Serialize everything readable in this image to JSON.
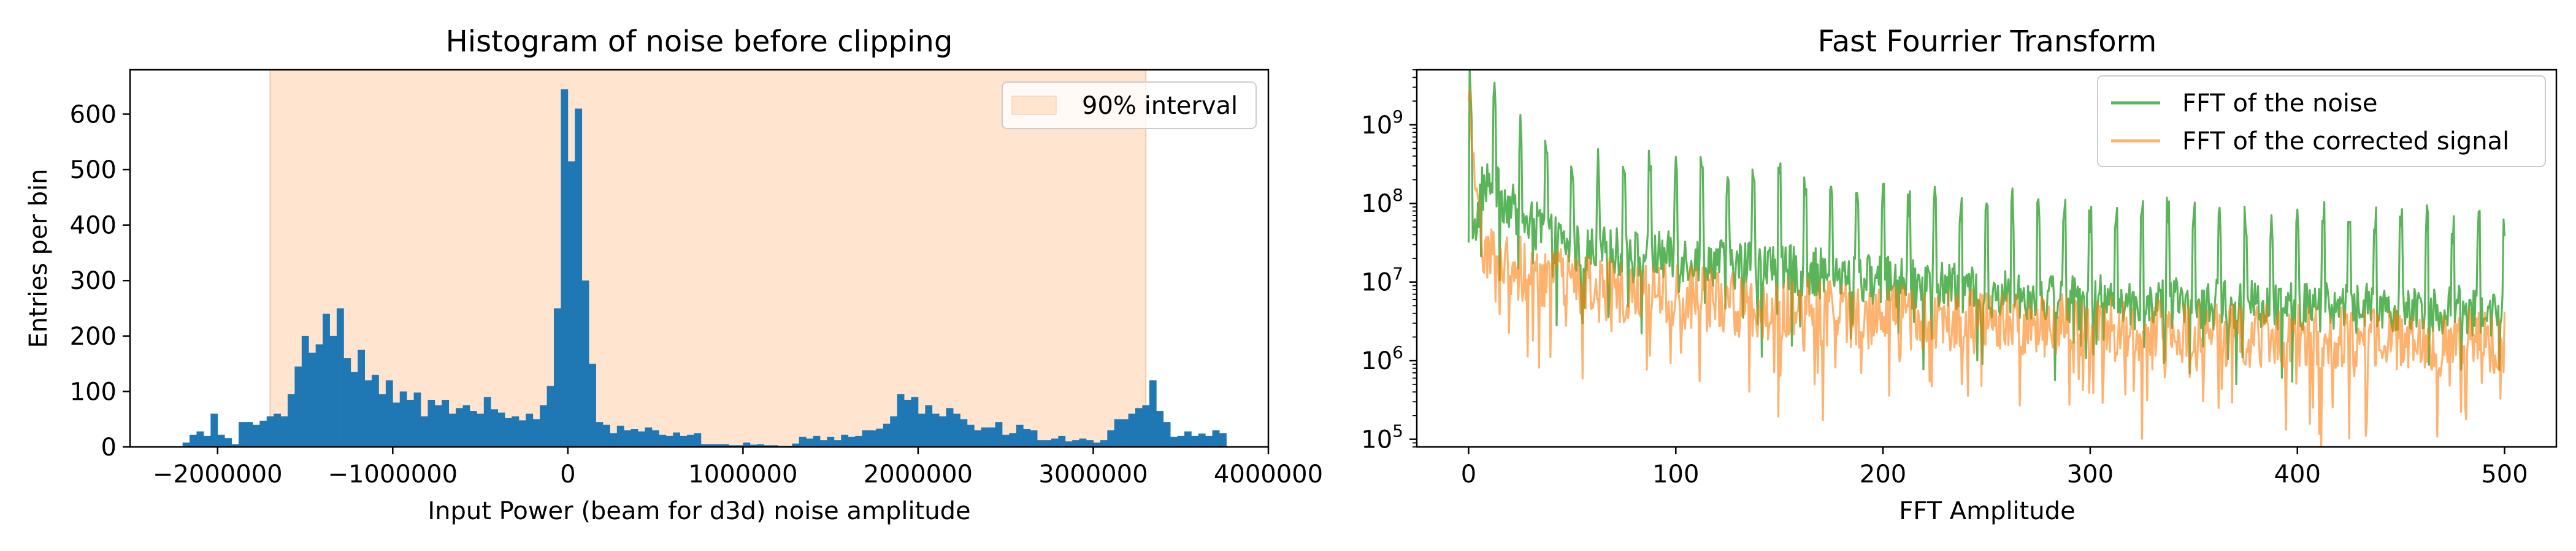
{
  "figure": {
    "background": "#ffffff"
  },
  "chart_data": [
    {
      "type": "bar",
      "title": "Histogram of noise before clipping",
      "xlabel": "Input Power (beam for d3d) noise amplitude",
      "ylabel": "Entries per bin",
      "xlim": [
        -2500000,
        4000000
      ],
      "ylim": [
        0,
        680
      ],
      "xticks": [
        -2000000,
        -1000000,
        0,
        1000000,
        2000000,
        3000000,
        4000000
      ],
      "xtick_labels": [
        "−2000000",
        "−1000000",
        "0",
        "1000000",
        "2000000",
        "3000000",
        "4000000"
      ],
      "yticks": [
        0,
        100,
        200,
        300,
        400,
        500,
        600
      ],
      "ytick_labels": [
        "0",
        "100",
        "200",
        "300",
        "400",
        "500",
        "600"
      ],
      "bar_color": "#1f77b4",
      "bin_start": -2200000,
      "bin_width": 40000,
      "values": [
        8,
        22,
        28,
        20,
        60,
        22,
        16,
        5,
        45,
        45,
        40,
        47,
        55,
        60,
        55,
        95,
        145,
        200,
        170,
        185,
        240,
        200,
        250,
        160,
        135,
        175,
        120,
        130,
        95,
        120,
        80,
        100,
        85,
        98,
        55,
        85,
        75,
        85,
        60,
        70,
        75,
        65,
        60,
        90,
        68,
        62,
        52,
        55,
        48,
        60,
        50,
        75,
        110,
        250,
        645,
        515,
        610,
        300,
        150,
        45,
        40,
        25,
        38,
        30,
        32,
        28,
        35,
        30,
        22,
        20,
        26,
        20,
        22,
        25,
        5,
        5,
        5,
        5,
        3,
        3,
        8,
        4,
        5,
        3,
        3,
        2,
        2,
        6,
        18,
        15,
        20,
        12,
        18,
        12,
        22,
        18,
        20,
        30,
        30,
        33,
        42,
        55,
        95,
        85,
        90,
        60,
        75,
        60,
        55,
        70,
        60,
        50,
        40,
        30,
        35,
        35,
        45,
        22,
        25,
        40,
        32,
        30,
        12,
        12,
        15,
        20,
        10,
        12,
        15,
        12,
        8,
        12,
        30,
        50,
        50,
        60,
        70,
        75,
        120,
        65,
        45,
        18,
        20,
        28,
        20,
        24,
        20,
        30,
        25
      ],
      "span": {
        "x0": -1700000,
        "x1": 3300000,
        "color": "#ffe5cf",
        "label": "90% interval"
      },
      "legend_placement": "upper-right"
    },
    {
      "type": "line",
      "title": "Fast Fourrier Transform",
      "xlabel": "FFT Amplitude",
      "ylabel": "",
      "yscale": "log",
      "xlim": [
        -25,
        525
      ],
      "ylim": [
        80000,
        5000000000
      ],
      "xticks": [
        0,
        100,
        200,
        300,
        400,
        500
      ],
      "xtick_labels": [
        "0",
        "100",
        "200",
        "300",
        "400",
        "500"
      ],
      "yticks": [
        100000,
        1000000,
        10000000,
        100000000,
        1000000000
      ],
      "ytick_mantissa": "10",
      "ytick_exponents": [
        "5",
        "6",
        "7",
        "8",
        "9"
      ],
      "x_range": [
        0,
        500
      ],
      "points_per_series": 1000,
      "series": [
        {
          "name": "FFT of the noise",
          "color": "#2ca02c",
          "alpha": 0.78,
          "start_log10": 7.5,
          "peak_log10": 9.75,
          "floor_log10": [
            [
              2,
              7.45
            ],
            [
              6,
              8.2
            ],
            [
              10,
              8.3
            ],
            [
              25,
              7.85
            ],
            [
              50,
              7.45
            ],
            [
              100,
              7.35
            ],
            [
              150,
              7.2
            ],
            [
              200,
              7.05
            ],
            [
              250,
              6.9
            ],
            [
              300,
              6.82
            ],
            [
              350,
              6.75
            ],
            [
              400,
              6.72
            ],
            [
              450,
              6.7
            ],
            [
              500,
              6.65
            ]
          ],
          "noise_amplitude": 0.32,
          "peak_spacing": 12.5,
          "peak_height_log10": 1.05
        },
        {
          "name": "FFT of the corrected signal",
          "color": "#ff7f0e",
          "alpha": 0.6,
          "start_log10": 9.3,
          "peak_log10": 9.45,
          "floor_log10": [
            [
              2,
              8.4
            ],
            [
              6,
              7.6
            ],
            [
              10,
              7.45
            ],
            [
              25,
              7.2
            ],
            [
              50,
              7.0
            ],
            [
              100,
              6.85
            ],
            [
              150,
              6.7
            ],
            [
              200,
              6.6
            ],
            [
              250,
              6.55
            ],
            [
              300,
              6.45
            ],
            [
              350,
              6.4
            ],
            [
              400,
              6.35
            ],
            [
              450,
              6.3
            ],
            [
              500,
              6.3
            ]
          ],
          "noise_amplitude": 0.42,
          "peak_spacing": 0,
          "peak_height_log10": 0
        }
      ],
      "legend_placement": "upper-right"
    }
  ]
}
